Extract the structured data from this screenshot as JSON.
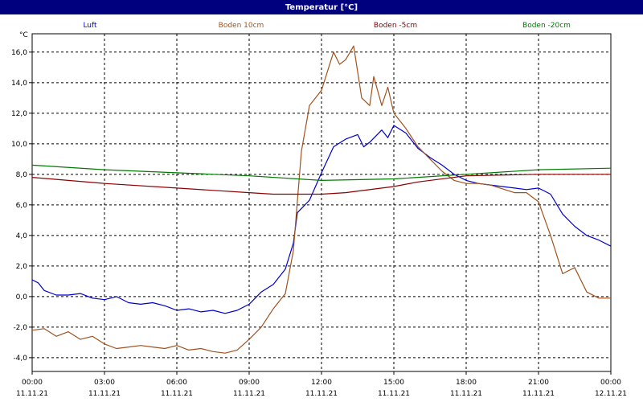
{
  "window": {
    "title": "Temperatur [°C]"
  },
  "chart_data": {
    "type": "line",
    "title": "Temperatur [°C]",
    "ylabel": "°C",
    "xlim": [
      "11.11.21 00:00",
      "12.11.21 00:00"
    ],
    "ylim": [
      -4.9,
      17.2
    ],
    "grid": true,
    "legend": "top",
    "x_ticks": [
      {
        "time": "00:00",
        "date": "11.11.21"
      },
      {
        "time": "03:00",
        "date": "11.11.21"
      },
      {
        "time": "06:00",
        "date": "11.11.21"
      },
      {
        "time": "09:00",
        "date": "11.11.21"
      },
      {
        "time": "12:00",
        "date": "11.11.21"
      },
      {
        "time": "15:00",
        "date": "11.11.21"
      },
      {
        "time": "18:00",
        "date": "11.11.21"
      },
      {
        "time": "21:00",
        "date": "11.11.21"
      },
      {
        "time": "00:00",
        "date": "12.11.21"
      }
    ],
    "y_ticks": [
      "-4,0",
      "-2,0",
      "0,0",
      "2,0",
      "4,0",
      "6,0",
      "8,0",
      "10,0",
      "12,0",
      "14,0",
      "16,0"
    ],
    "y_tick_values": [
      -4,
      -2,
      0,
      2,
      4,
      6,
      8,
      10,
      12,
      14,
      16
    ],
    "series": [
      {
        "name": "Luft",
        "color": "#0000cc",
        "points": [
          [
            "11.11.21 00:00",
            1.1
          ],
          [
            "11.11.21 00:15",
            0.9
          ],
          [
            "11.11.21 00:30",
            0.4
          ],
          [
            "11.11.21 01:00",
            0.1
          ],
          [
            "11.11.21 01:30",
            0.1
          ],
          [
            "11.11.21 02:00",
            0.2
          ],
          [
            "11.11.21 02:30",
            -0.1
          ],
          [
            "11.11.21 03:00",
            -0.2
          ],
          [
            "11.11.21 03:30",
            0.0
          ],
          [
            "11.11.21 04:00",
            -0.4
          ],
          [
            "11.11.21 04:30",
            -0.5
          ],
          [
            "11.11.21 05:00",
            -0.4
          ],
          [
            "11.11.21 05:30",
            -0.6
          ],
          [
            "11.11.21 06:00",
            -0.9
          ],
          [
            "11.11.21 06:30",
            -0.8
          ],
          [
            "11.11.21 07:00",
            -1.0
          ],
          [
            "11.11.21 07:30",
            -0.9
          ],
          [
            "11.11.21 08:00",
            -1.1
          ],
          [
            "11.11.21 08:30",
            -0.9
          ],
          [
            "11.11.21 09:00",
            -0.5
          ],
          [
            "11.11.21 09:30",
            0.3
          ],
          [
            "11.11.21 10:00",
            0.8
          ],
          [
            "11.11.21 10:30",
            1.8
          ],
          [
            "11.11.21 10:50",
            3.5
          ],
          [
            "11.11.21 11:00",
            5.5
          ],
          [
            "11.11.21 11:30",
            6.3
          ],
          [
            "11.11.21 12:00",
            8.1
          ],
          [
            "11.11.21 12:30",
            9.8
          ],
          [
            "11.11.21 13:00",
            10.3
          ],
          [
            "11.11.21 13:30",
            10.6
          ],
          [
            "11.11.21 13:45",
            9.8
          ],
          [
            "11.11.21 14:00",
            10.1
          ],
          [
            "11.11.21 14:30",
            10.9
          ],
          [
            "11.11.21 14:45",
            10.4
          ],
          [
            "11.11.21 15:00",
            11.2
          ],
          [
            "11.11.21 15:30",
            10.7
          ],
          [
            "11.11.21 16:00",
            9.7
          ],
          [
            "11.11.21 16:30",
            9.1
          ],
          [
            "11.11.21 17:00",
            8.6
          ],
          [
            "11.11.21 17:30",
            8.0
          ],
          [
            "11.11.21 18:00",
            7.6
          ],
          [
            "11.11.21 18:30",
            7.4
          ],
          [
            "11.11.21 19:00",
            7.3
          ],
          [
            "11.11.21 20:00",
            7.1
          ],
          [
            "11.11.21 20:30",
            7.0
          ],
          [
            "11.11.21 21:00",
            7.1
          ],
          [
            "11.11.21 21:30",
            6.7
          ],
          [
            "11.11.21 22:00",
            5.4
          ],
          [
            "11.11.21 22:30",
            4.6
          ],
          [
            "11.11.21 23:00",
            4.0
          ],
          [
            "11.11.21 23:30",
            3.7
          ],
          [
            "12.11.21 00:00",
            3.3
          ]
        ]
      },
      {
        "name": "Boden 10cm",
        "color": "#a0521e",
        "points": [
          [
            "11.11.21 00:00",
            -2.2
          ],
          [
            "11.11.21 00:30",
            -2.1
          ],
          [
            "11.11.21 01:00",
            -2.6
          ],
          [
            "11.11.21 01:30",
            -2.3
          ],
          [
            "11.11.21 02:00",
            -2.8
          ],
          [
            "11.11.21 02:30",
            -2.6
          ],
          [
            "11.11.21 03:00",
            -3.1
          ],
          [
            "11.11.21 03:30",
            -3.4
          ],
          [
            "11.11.21 04:00",
            -3.3
          ],
          [
            "11.11.21 04:30",
            -3.2
          ],
          [
            "11.11.21 05:00",
            -3.3
          ],
          [
            "11.11.21 05:30",
            -3.4
          ],
          [
            "11.11.21 06:00",
            -3.2
          ],
          [
            "11.11.21 06:30",
            -3.5
          ],
          [
            "11.11.21 07:00",
            -3.4
          ],
          [
            "11.11.21 07:30",
            -3.6
          ],
          [
            "11.11.21 08:00",
            -3.7
          ],
          [
            "11.11.21 08:30",
            -3.5
          ],
          [
            "11.11.21 09:00",
            -2.8
          ],
          [
            "11.11.21 09:30",
            -2.0
          ],
          [
            "11.11.21 10:00",
            -0.8
          ],
          [
            "11.11.21 10:30",
            0.2
          ],
          [
            "11.11.21 10:50",
            3.0
          ],
          [
            "11.11.21 11:10",
            9.5
          ],
          [
            "11.11.21 11:30",
            12.5
          ],
          [
            "11.11.21 12:00",
            13.5
          ],
          [
            "11.11.21 12:30",
            16.0
          ],
          [
            "11.11.21 12:45",
            15.2
          ],
          [
            "11.11.21 13:00",
            15.5
          ],
          [
            "11.11.21 13:20",
            16.4
          ],
          [
            "11.11.21 13:40",
            13.0
          ],
          [
            "11.11.21 14:00",
            12.5
          ],
          [
            "11.11.21 14:10",
            14.4
          ],
          [
            "11.11.21 14:30",
            12.5
          ],
          [
            "11.11.21 14:45",
            13.7
          ],
          [
            "11.11.21 15:00",
            12.0
          ],
          [
            "11.11.21 15:30",
            11.0
          ],
          [
            "11.11.21 16:00",
            9.8
          ],
          [
            "11.11.21 16:30",
            9.0
          ],
          [
            "11.11.21 17:00",
            8.2
          ],
          [
            "11.11.21 17:30",
            7.6
          ],
          [
            "11.11.21 18:00",
            7.4
          ],
          [
            "11.11.21 18:30",
            7.4
          ],
          [
            "11.11.21 19:00",
            7.3
          ],
          [
            "11.11.21 20:00",
            6.8
          ],
          [
            "11.11.21 20:30",
            6.8
          ],
          [
            "11.11.21 21:00",
            6.2
          ],
          [
            "11.11.21 21:30",
            4.0
          ],
          [
            "11.11.21 22:00",
            1.5
          ],
          [
            "11.11.21 22:30",
            1.9
          ],
          [
            "11.11.21 23:00",
            0.3
          ],
          [
            "11.11.21 23:30",
            -0.1
          ],
          [
            "12.11.21 00:00",
            -0.1
          ]
        ]
      },
      {
        "name": "Boden -5cm",
        "color": "#8b0000",
        "points": [
          [
            "11.11.21 00:00",
            7.8
          ],
          [
            "11.11.21 03:00",
            7.4
          ],
          [
            "11.11.21 06:00",
            7.1
          ],
          [
            "11.11.21 09:00",
            6.8
          ],
          [
            "11.11.21 10:00",
            6.7
          ],
          [
            "11.11.21 12:00",
            6.7
          ],
          [
            "11.11.21 13:00",
            6.8
          ],
          [
            "11.11.21 15:00",
            7.2
          ],
          [
            "11.11.21 16:00",
            7.5
          ],
          [
            "11.11.21 18:00",
            7.9
          ],
          [
            "11.11.21 21:00",
            8.0
          ],
          [
            "12.11.21 00:00",
            8.0
          ]
        ]
      },
      {
        "name": "Boden -20cm",
        "color": "#007a00",
        "points": [
          [
            "11.11.21 00:00",
            8.6
          ],
          [
            "11.11.21 03:00",
            8.3
          ],
          [
            "11.11.21 06:00",
            8.1
          ],
          [
            "11.11.21 09:00",
            7.9
          ],
          [
            "11.11.21 12:00",
            7.6
          ],
          [
            "11.11.21 15:00",
            7.7
          ],
          [
            "11.11.21 18:00",
            8.0
          ],
          [
            "11.11.21 21:00",
            8.3
          ],
          [
            "12.11.21 00:00",
            8.4
          ]
        ]
      }
    ]
  }
}
